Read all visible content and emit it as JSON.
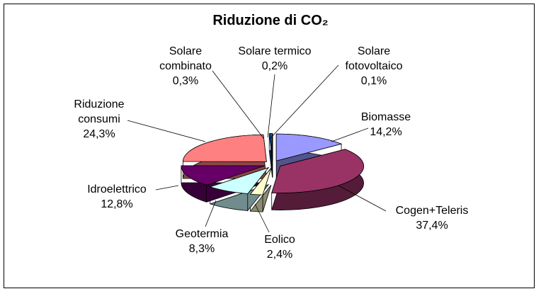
{
  "chart_data": {
    "type": "pie",
    "title": "Riduzione di CO₂",
    "categories": [
      "Biomasse",
      "Cogen+Teleris",
      "Eolico",
      "Geotermia",
      "Idroelettrico",
      "Riduzione consumi",
      "Solare combinato",
      "Solare termico",
      "Solare fotovoltaico"
    ],
    "values": [
      14.2,
      37.4,
      2.4,
      8.3,
      12.8,
      24.3,
      0.3,
      0.2,
      0.1
    ],
    "value_labels": [
      "14,2%",
      "37,4%",
      "2,4%",
      "8,3%",
      "12,8%",
      "24,3%",
      "0,3%",
      "0,2%",
      "0,1%"
    ],
    "colors": [
      "#9999ff",
      "#993366",
      "#ffffcc",
      "#ccffff",
      "#660066",
      "#ff8080",
      "#0066cc",
      "#ccccff",
      "#000080"
    ]
  }
}
